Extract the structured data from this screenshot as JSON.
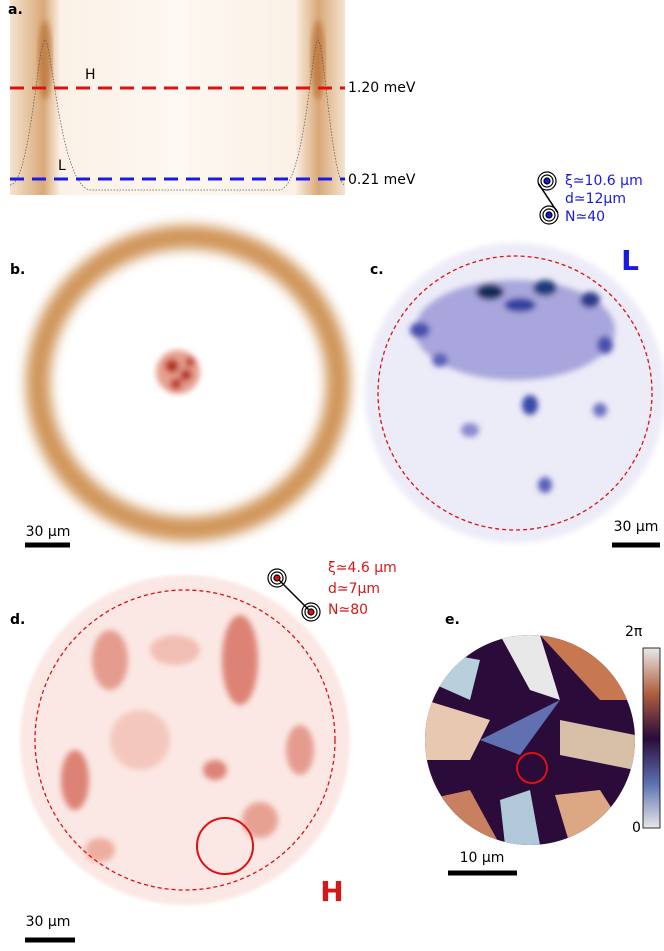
{
  "panels": {
    "a": {
      "label": "a.",
      "lines": [
        {
          "name": "H",
          "energy": "1.20 meV"
        },
        {
          "name": "L",
          "energy": "0.21 meV"
        }
      ]
    },
    "b": {
      "label": "b.",
      "scale_bar": "30 µm"
    },
    "c": {
      "label": "c.",
      "tag": "L",
      "scale_bar": "30 µm"
    },
    "d": {
      "label": "d.",
      "tag": "H",
      "scale_bar": "30 µm"
    },
    "e": {
      "label": "e.",
      "scale_bar": "10 µm",
      "colorbar": {
        "max": "2π",
        "min": "0"
      }
    }
  },
  "insets": {
    "low": {
      "xi": "ξ≃10.6 µm",
      "d": "d≃12µm",
      "N": "N≃40"
    },
    "high": {
      "xi": "ξ≃4.6 µm",
      "d": "d≃7µm",
      "N": "N≃80"
    }
  }
}
